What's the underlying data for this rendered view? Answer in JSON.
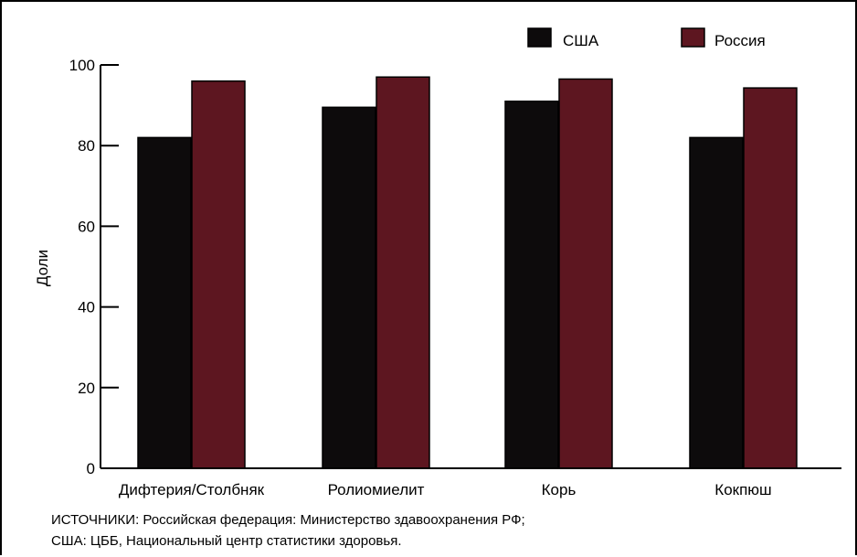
{
  "chart_data": {
    "type": "bar",
    "categories": [
      "Дифтерия/Столбняк",
      "Ролиомиелит",
      "Корь",
      "Кокпюш"
    ],
    "series": [
      {
        "name": "США",
        "values": [
          82,
          89.5,
          91,
          82
        ],
        "color": "#0d0b0c"
      },
      {
        "name": "Россия",
        "values": [
          96,
          97,
          96.5,
          94.3
        ],
        "color": "#5d1620"
      }
    ],
    "ylabel": "Доли",
    "ylim": [
      0,
      100
    ],
    "yticks": [
      0,
      20,
      40,
      60,
      80,
      100
    ],
    "grid": false,
    "legend": "top-right"
  },
  "source": {
    "line1": "ИСТОЧНИКИ:  Российская федерация: Министерство здавоохранения РФ;",
    "line2": "США: ЦББ, Национальный центр статистики здоровья."
  }
}
